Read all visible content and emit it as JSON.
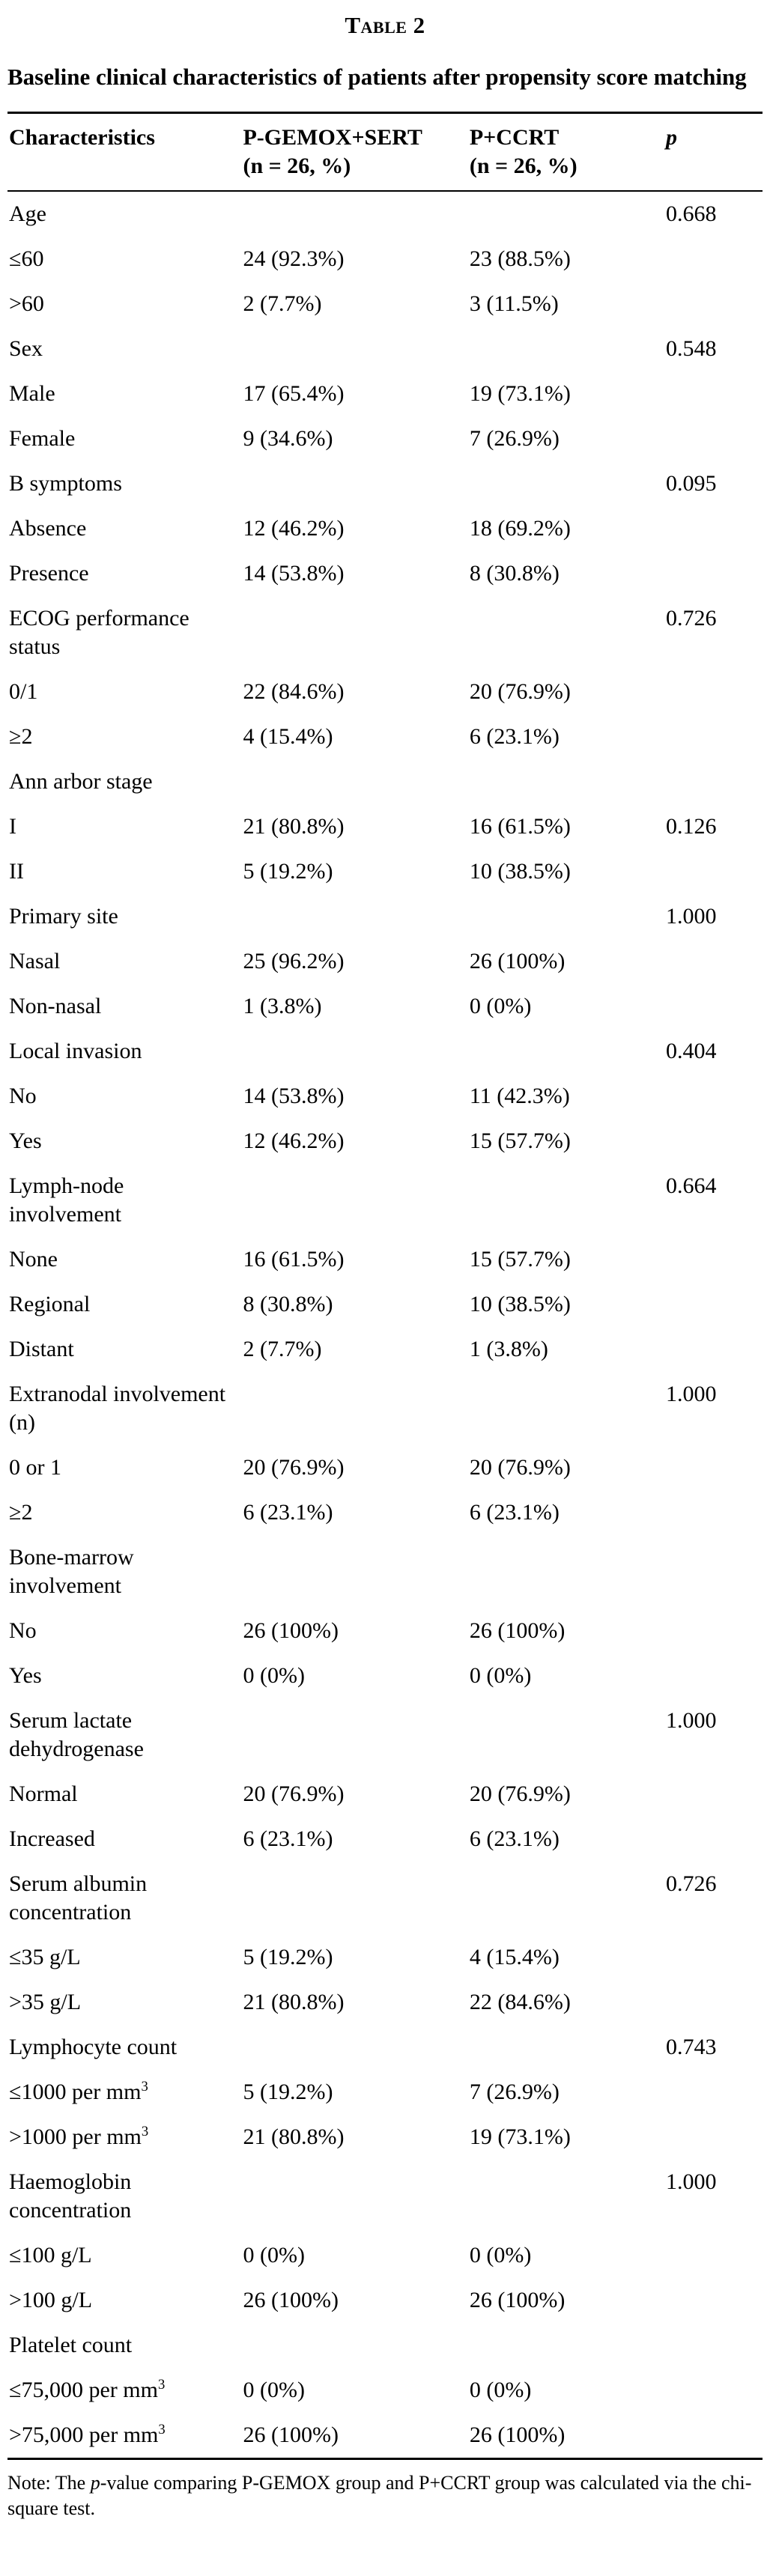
{
  "page": {
    "table_label": "Table 2",
    "caption": "Baseline clinical characteristics of patients after propensity score matching"
  },
  "table": {
    "columns": [
      {
        "line1": "Characteristics",
        "line2": ""
      },
      {
        "line1": "P-GEMOX+SERT",
        "line2": "(n = 26, %)"
      },
      {
        "line1": "P+CCRT",
        "line2": "(n = 26, %)"
      },
      {
        "line1": "p",
        "line2": ""
      }
    ],
    "rows": [
      {
        "label": "Age",
        "g1": "",
        "g2": "",
        "p": "0.668"
      },
      {
        "label": "≤60",
        "g1": "24 (92.3%)",
        "g2": "23 (88.5%)",
        "p": ""
      },
      {
        "label": ">60",
        "g1": "2 (7.7%)",
        "g2": "3 (11.5%)",
        "p": ""
      },
      {
        "label": "Sex",
        "g1": "",
        "g2": "",
        "p": "0.548"
      },
      {
        "label": "Male",
        "g1": "17 (65.4%)",
        "g2": "19 (73.1%)",
        "p": ""
      },
      {
        "label": "Female",
        "g1": "9 (34.6%)",
        "g2": "7 (26.9%)",
        "p": ""
      },
      {
        "label": "B symptoms",
        "g1": "",
        "g2": "",
        "p": "0.095"
      },
      {
        "label": "Absence",
        "g1": "12 (46.2%)",
        "g2": "18 (69.2%)",
        "p": ""
      },
      {
        "label": "Presence",
        "g1": "14 (53.8%)",
        "g2": "8 (30.8%)",
        "p": ""
      },
      {
        "label": "ECOG performance status",
        "g1": "",
        "g2": "",
        "p": "0.726"
      },
      {
        "label": "0/1",
        "g1": "22 (84.6%)",
        "g2": "20 (76.9%)",
        "p": ""
      },
      {
        "label": "≥2",
        "g1": "4 (15.4%)",
        "g2": "6 (23.1%)",
        "p": ""
      },
      {
        "label": "Ann arbor stage",
        "g1": "",
        "g2": "",
        "p": ""
      },
      {
        "label": "I",
        "g1": "21 (80.8%)",
        "g2": "16 (61.5%)",
        "p": "0.126"
      },
      {
        "label": "II",
        "g1": "5 (19.2%)",
        "g2": "10 (38.5%)",
        "p": ""
      },
      {
        "label": "Primary site",
        "g1": "",
        "g2": "",
        "p": "1.000"
      },
      {
        "label": "Nasal",
        "g1": "25 (96.2%)",
        "g2": "26 (100%)",
        "p": ""
      },
      {
        "label": "Non-nasal",
        "g1": "1 (3.8%)",
        "g2": "0 (0%)",
        "p": ""
      },
      {
        "label": "Local invasion",
        "g1": "",
        "g2": "",
        "p": "0.404"
      },
      {
        "label": "No",
        "g1": "14 (53.8%)",
        "g2": "11 (42.3%)",
        "p": ""
      },
      {
        "label": "Yes",
        "g1": "12 (46.2%)",
        "g2": "15 (57.7%)",
        "p": ""
      },
      {
        "label": "Lymph-node involvement",
        "g1": "",
        "g2": "",
        "p": "0.664"
      },
      {
        "label": "None",
        "g1": "16 (61.5%)",
        "g2": "15 (57.7%)",
        "p": ""
      },
      {
        "label": "Regional",
        "g1": "8 (30.8%)",
        "g2": "10 (38.5%)",
        "p": ""
      },
      {
        "label": "Distant",
        "g1": "2 (7.7%)",
        "g2": "1 (3.8%)",
        "p": ""
      },
      {
        "label": "Extranodal involvement (n)",
        "g1": "",
        "g2": "",
        "p": "1.000"
      },
      {
        "label": "0 or 1",
        "g1": "20 (76.9%)",
        "g2": "20 (76.9%)",
        "p": ""
      },
      {
        "label": "≥2",
        "g1": "6 (23.1%)",
        "g2": "6 (23.1%)",
        "p": ""
      },
      {
        "label": "Bone-marrow involvement",
        "g1": "",
        "g2": "",
        "p": ""
      },
      {
        "label": "No",
        "g1": "26 (100%)",
        "g2": "26 (100%)",
        "p": ""
      },
      {
        "label": "Yes",
        "g1": "0 (0%)",
        "g2": "0 (0%)",
        "p": ""
      },
      {
        "label": "Serum lactate dehydrogenase",
        "g1": "",
        "g2": "",
        "p": "1.000"
      },
      {
        "label": "Normal",
        "g1": "20 (76.9%)",
        "g2": "20 (76.9%)",
        "p": ""
      },
      {
        "label": "Increased",
        "g1": "6 (23.1%)",
        "g2": "6 (23.1%)",
        "p": ""
      },
      {
        "label": "Serum albumin concentration",
        "g1": "",
        "g2": "",
        "p": "0.726"
      },
      {
        "label": "≤35 g/L",
        "g1": "5 (19.2%)",
        "g2": "4 (15.4%)",
        "p": ""
      },
      {
        "label": ">35 g/L",
        "g1": "21 (80.8%)",
        "g2": "22 (84.6%)",
        "p": ""
      },
      {
        "label": "Lymphocyte count",
        "g1": "",
        "g2": "",
        "p": "0.743"
      },
      {
        "label": "≤1000 per mm",
        "sup": "3",
        "g1": "5 (19.2%)",
        "g2": "7 (26.9%)",
        "p": ""
      },
      {
        "label": ">1000 per mm",
        "sup": "3",
        "g1": "21 (80.8%)",
        "g2": "19 (73.1%)",
        "p": ""
      },
      {
        "label": "Haemoglobin concentration",
        "g1": "",
        "g2": "",
        "p": "1.000"
      },
      {
        "label": "≤100 g/L",
        "g1": "0 (0%)",
        "g2": "0 (0%)",
        "p": ""
      },
      {
        "label": ">100 g/L",
        "g1": "26 (100%)",
        "g2": "26 (100%)",
        "p": ""
      },
      {
        "label": "Platelet count",
        "g1": "",
        "g2": "",
        "p": ""
      },
      {
        "label": "≤75,000 per mm",
        "sup": "3",
        "g1": "0 (0%)",
        "g2": "0 (0%)",
        "p": ""
      },
      {
        "label": ">75,000 per mm",
        "sup": "3",
        "g1": "26 (100%)",
        "g2": "26 (100%)",
        "p": ""
      }
    ]
  },
  "note": {
    "prefix": "Note: The ",
    "italic_term": "p",
    "suffix": "-value comparing P-GEMOX group and P+CCRT group was calculated via the chi-square test."
  }
}
